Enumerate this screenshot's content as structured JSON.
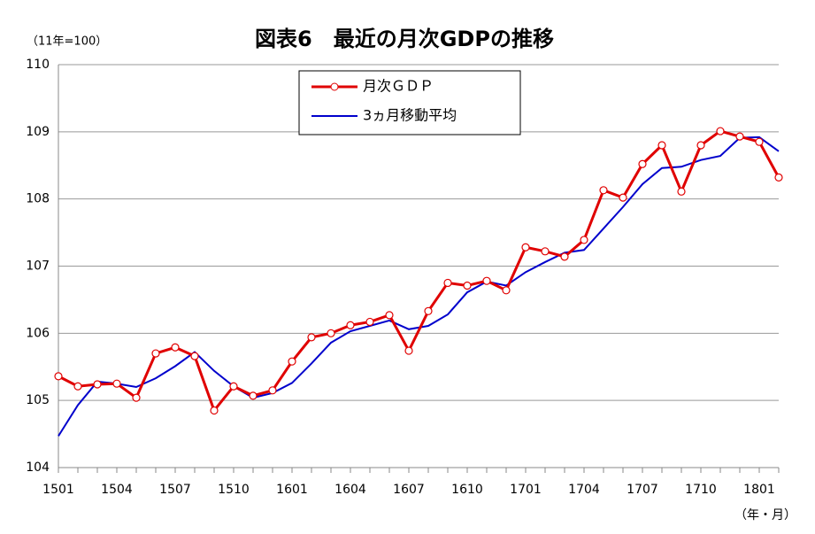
{
  "chart_data": {
    "type": "line",
    "title": "図表6　最近の月次GDPの推移",
    "y_unit_label": "（11年=100）",
    "x_label": "（年・月）",
    "categories": [
      "1501",
      null,
      null,
      "1504",
      null,
      null,
      "1507",
      null,
      null,
      "1510",
      null,
      null,
      "1601",
      null,
      null,
      "1604",
      null,
      null,
      "1607",
      null,
      null,
      "1610",
      null,
      null,
      "1701",
      null,
      null,
      "1704",
      null,
      null,
      "1707",
      null,
      null,
      "1710",
      null,
      null,
      "1801",
      null
    ],
    "series": [
      {
        "name": "月次ＧＤＰ",
        "color": "#e00000",
        "marker": "circle",
        "values": [
          105.36,
          105.21,
          105.24,
          105.25,
          105.04,
          105.7,
          105.79,
          105.66,
          104.85,
          105.21,
          105.07,
          105.15,
          105.58,
          105.94,
          106.0,
          106.12,
          106.17,
          106.27,
          105.74,
          106.33,
          106.75,
          106.71,
          106.78,
          106.64,
          107.28,
          107.22,
          107.14,
          107.39,
          108.13,
          108.02,
          108.52,
          108.8,
          108.11,
          108.8,
          109.01,
          108.93,
          108.85,
          108.32
        ]
      },
      {
        "name": "3ヵ月移動平均",
        "color": "#0000cc",
        "values": [
          104.47,
          104.93,
          105.28,
          105.25,
          105.2,
          105.33,
          105.51,
          105.72,
          105.44,
          105.21,
          105.04,
          105.11,
          105.26,
          105.55,
          105.86,
          106.03,
          106.11,
          106.19,
          106.06,
          106.11,
          106.28,
          106.61,
          106.77,
          106.71,
          106.91,
          107.06,
          107.2,
          107.24,
          107.56,
          107.88,
          108.22,
          108.46,
          108.48,
          108.58,
          108.64,
          108.91,
          108.92,
          108.71
        ]
      }
    ],
    "ylim": [
      104,
      110
    ],
    "yticks": [
      104,
      105,
      106,
      107,
      108,
      109,
      110
    ],
    "grid": true
  }
}
